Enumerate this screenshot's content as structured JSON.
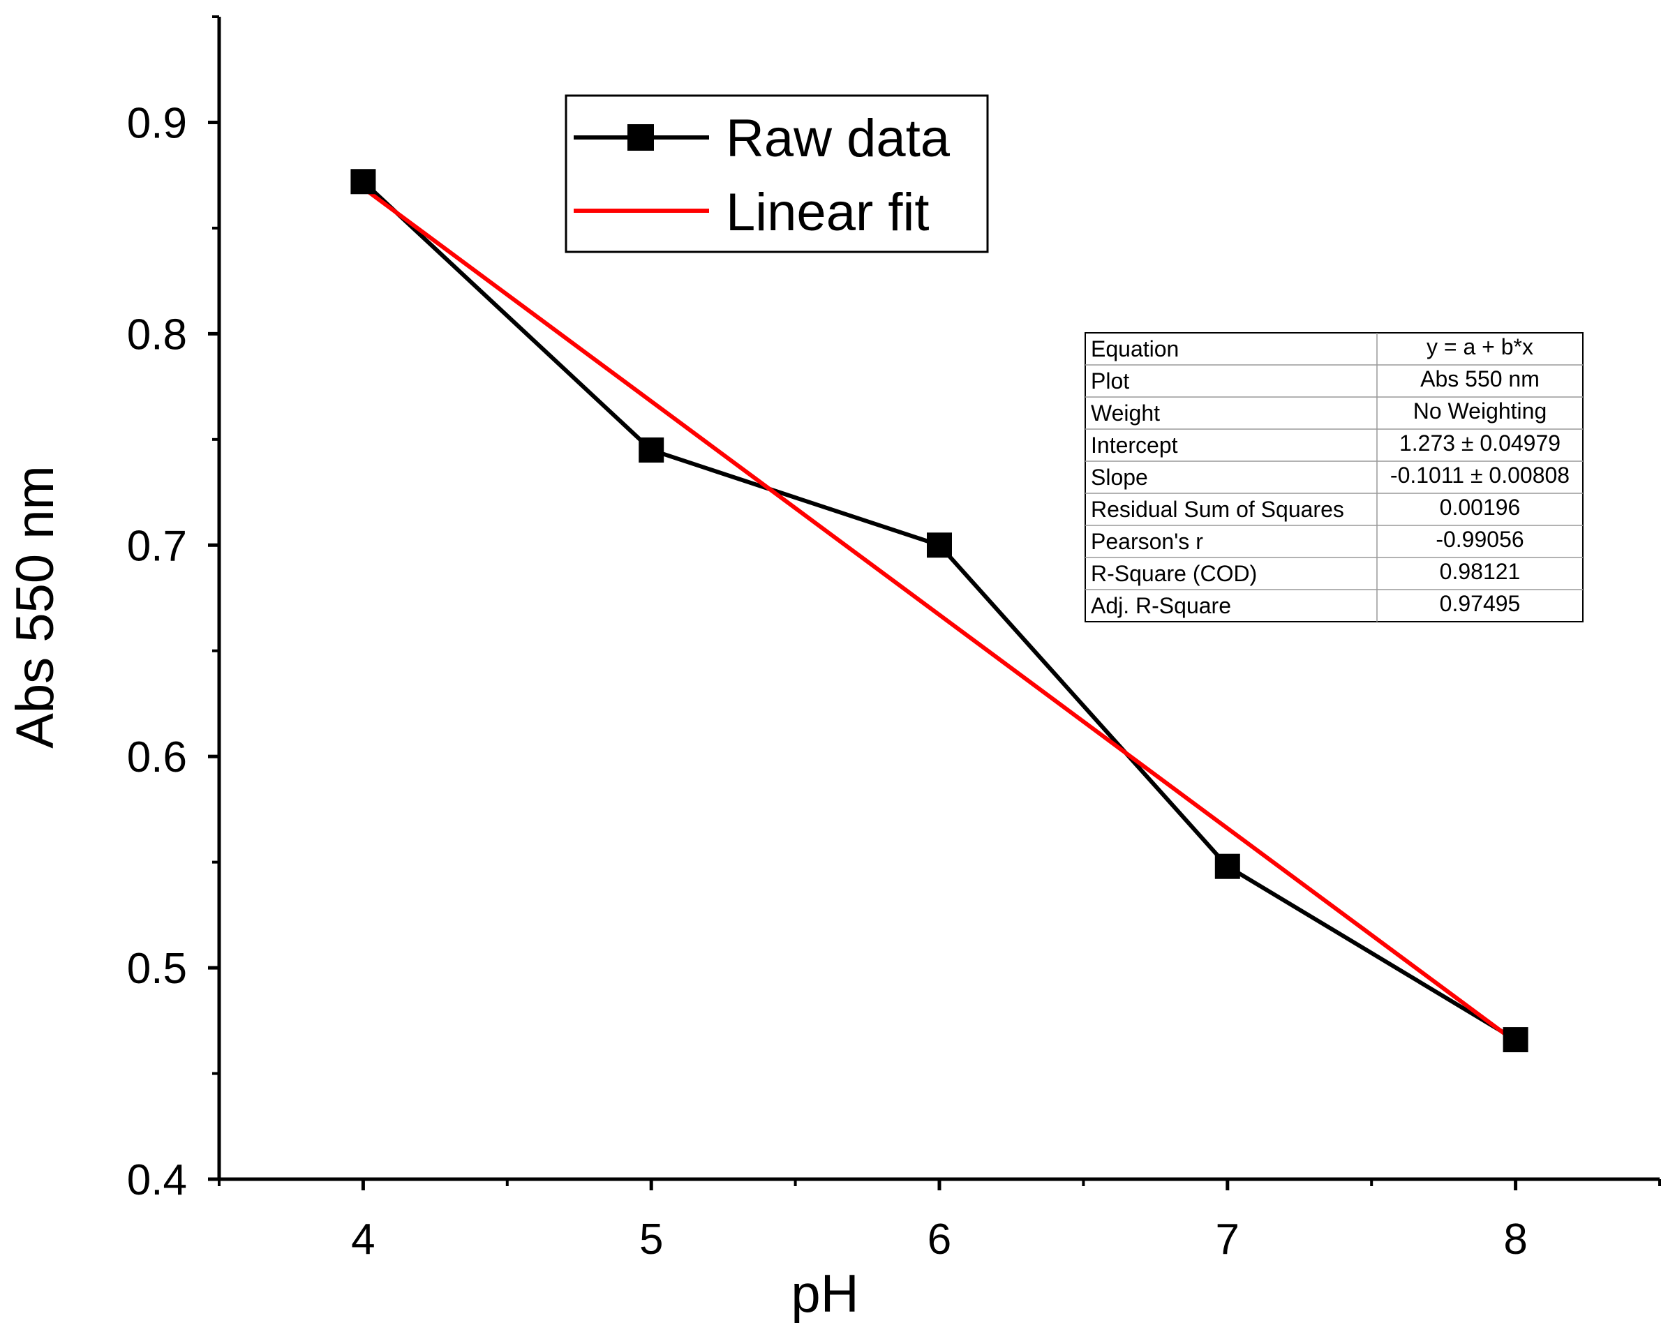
{
  "chart_data": {
    "type": "line",
    "title": "",
    "xlabel": "pH",
    "ylabel": "Abs 550 nm",
    "xlim": [
      3.5,
      8.5
    ],
    "ylim": [
      0.4,
      0.95
    ],
    "x_ticks": [
      "4",
      "5",
      "6",
      "7",
      "8"
    ],
    "y_ticks": [
      "0.4",
      "0.5",
      "0.6",
      "0.7",
      "0.8",
      "0.9"
    ],
    "grid": false,
    "legend_position": "top-center",
    "series": [
      {
        "name": "Raw data",
        "style": "line-square-markers",
        "color": "#000000",
        "x": [
          4,
          5,
          6,
          7,
          8
        ],
        "y": [
          0.872,
          0.745,
          0.7,
          0.548,
          0.466
        ]
      },
      {
        "name": "Linear fit",
        "style": "line",
        "color": "#ff0000",
        "x": [
          4,
          8
        ],
        "y": [
          0.869,
          0.465
        ]
      }
    ],
    "fit_table": {
      "rows": [
        {
          "label": "Equation",
          "value": "y = a + b*x"
        },
        {
          "label": "Plot",
          "value": "Abs 550 nm"
        },
        {
          "label": "Weight",
          "value": "No Weighting"
        },
        {
          "label": "Intercept",
          "value": "1.273 ± 0.04979"
        },
        {
          "label": "Slope",
          "value": "-0.1011 ± 0.00808"
        },
        {
          "label": "Residual Sum of Squares",
          "value": "0.00196"
        },
        {
          "label": "Pearson's r",
          "value": "-0.99056"
        },
        {
          "label": "R-Square (COD)",
          "value": "0.98121"
        },
        {
          "label": "Adj. R-Square",
          "value": "0.97495"
        }
      ]
    }
  }
}
